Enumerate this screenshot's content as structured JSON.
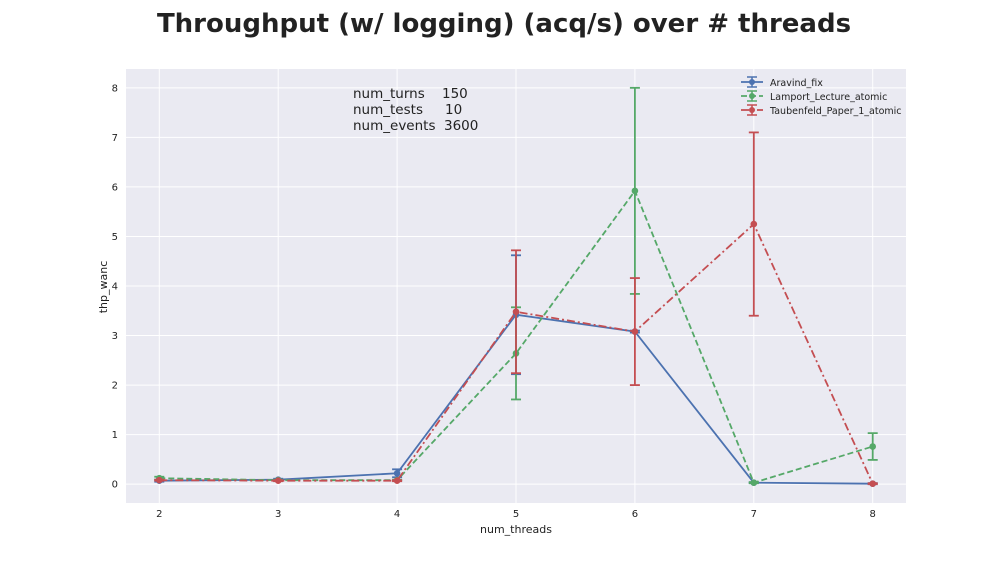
{
  "chart_data": {
    "type": "line",
    "title": "Throughput (w/ logging) (acq/s) over # threads",
    "xlabel": "num_threads",
    "ylabel": "thp_wanc",
    "x": [
      2,
      3,
      4,
      5,
      6,
      7,
      8
    ],
    "xlim": [
      1.72,
      8.28
    ],
    "ylim": [
      -0.38,
      8.38
    ],
    "xticks": [
      "2",
      "3",
      "4",
      "5",
      "6",
      "7",
      "8"
    ],
    "yticks": [
      "0",
      "1",
      "2",
      "3",
      "4",
      "5",
      "6",
      "7",
      "8"
    ],
    "grid": true,
    "legend_position": "top-right",
    "series": [
      {
        "name": "Aravind_fix",
        "color": "#4c72b0",
        "line_style": "solid",
        "y": [
          0.07,
          0.09,
          0.22,
          3.42,
          3.08,
          0.03,
          0.01
        ],
        "yerr": [
          0.02,
          0.02,
          0.08,
          1.2,
          0.02,
          0.01,
          0.01
        ]
      },
      {
        "name": "Lamport_Lecture_atomic",
        "color": "#55a868",
        "line_style": "dashed",
        "y": [
          0.12,
          0.08,
          0.08,
          2.64,
          5.92,
          0.03,
          0.76
        ],
        "yerr": [
          0.03,
          0.01,
          0.01,
          0.93,
          2.08,
          0.01,
          0.27
        ]
      },
      {
        "name": "Taubenfeld_Paper_1_atomic",
        "color": "#c44e52",
        "line_style": "dashdot",
        "y": [
          0.08,
          0.07,
          0.07,
          3.48,
          3.08,
          5.25,
          0.01
        ],
        "yerr": [
          0.01,
          0.01,
          0.01,
          1.24,
          1.08,
          1.85,
          0.01
        ]
      }
    ]
  },
  "annotation": {
    "rows": [
      {
        "label": "num_turns",
        "value": "150"
      },
      {
        "label": "num_tests",
        "value": "10"
      },
      {
        "label": "num_events",
        "value": "3600"
      }
    ]
  }
}
